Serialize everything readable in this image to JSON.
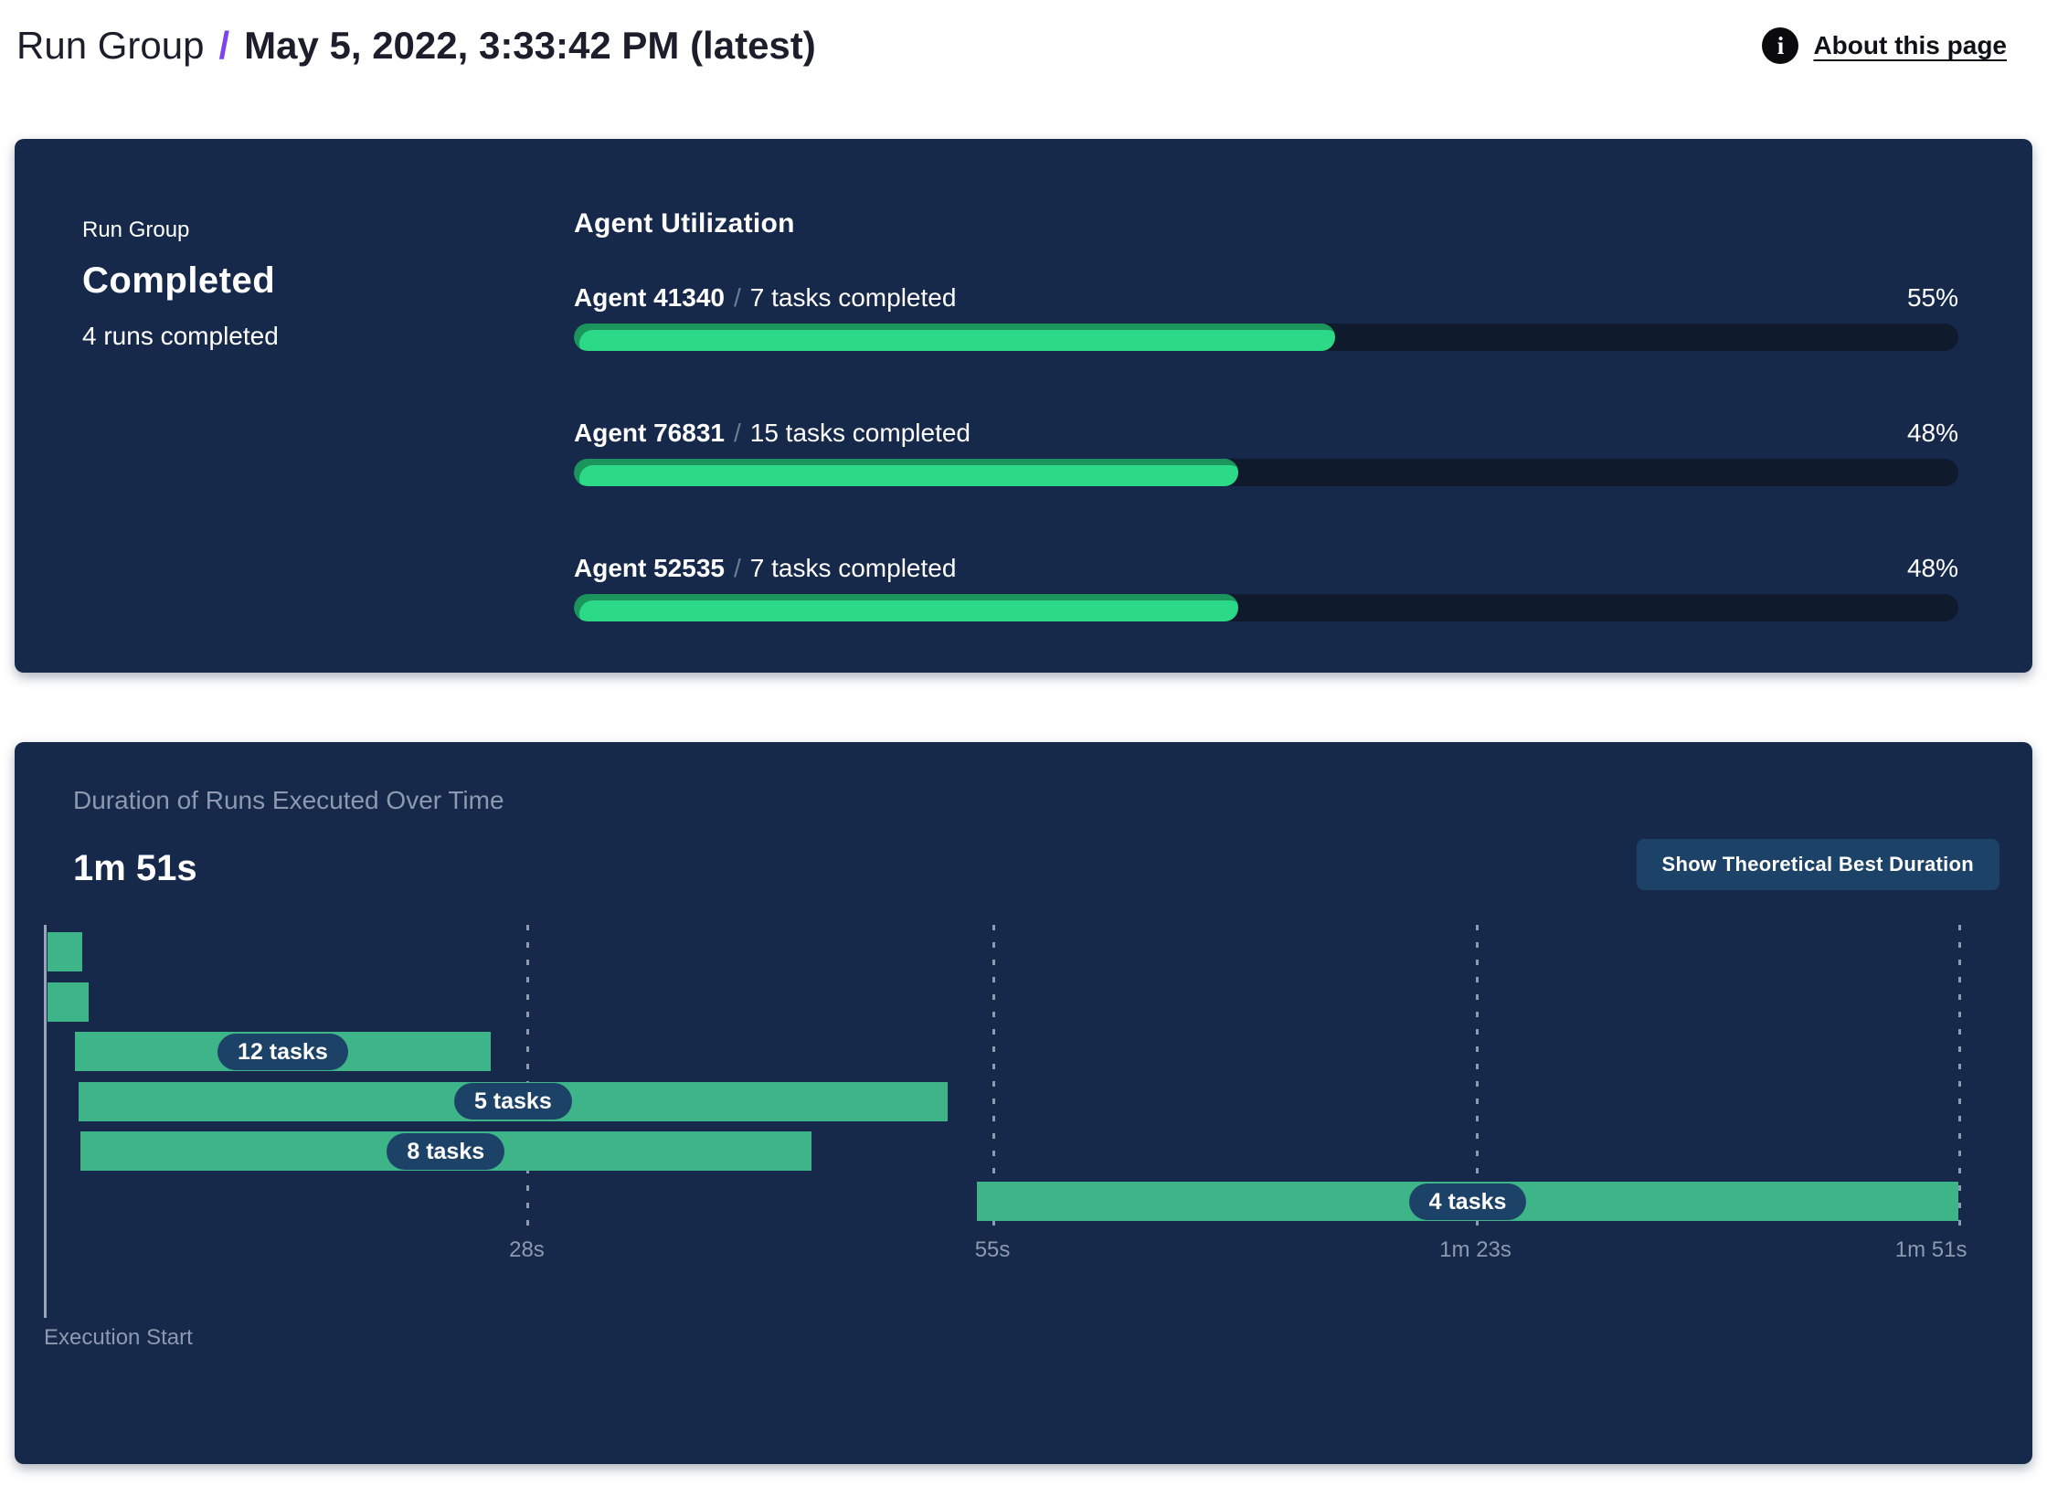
{
  "header": {
    "breadcrumb": "Run Group",
    "separator": "/",
    "current": "May 5, 2022, 3:33:42 PM (latest)",
    "about_link": "About this page",
    "info_icon_glyph": "i"
  },
  "colors": {
    "accent_purple": "#7a45f0",
    "panel_background": "#16294b",
    "progress_fill_green": "#2bd987",
    "progress_track": "#0f1a2d",
    "gantt_bar_green": "#3eb489",
    "pill_and_button_navy": "#1d4267",
    "muted_text": "#8d99ae"
  },
  "summary": {
    "label": "Run Group",
    "status": "Completed",
    "runs_completed": "4 runs completed",
    "section_title": "Agent Utilization",
    "agents": [
      {
        "name": "Agent 41340",
        "separator": "/",
        "tasks": "7 tasks completed",
        "utilization_pct": 55,
        "pct_label": "55%"
      },
      {
        "name": "Agent 76831",
        "separator": "/",
        "tasks": "15 tasks completed",
        "utilization_pct": 48,
        "pct_label": "48%"
      },
      {
        "name": "Agent 52535",
        "separator": "/",
        "tasks": "7 tasks completed",
        "utilization_pct": 48,
        "pct_label": "48%"
      }
    ]
  },
  "duration": {
    "title": "Duration of Runs Executed Over Time",
    "total": "1m 51s",
    "button_label": "Show Theoretical Best Duration",
    "axis_label": "Execution Start"
  },
  "chart_data": {
    "type": "bar",
    "subtype": "horizontal-gantt-timeline",
    "title": "Duration of Runs Executed Over Time",
    "total_duration_label": "1m 51s",
    "x_unit": "seconds",
    "x_range": [
      0,
      111
    ],
    "x_axis_label": "Execution Start",
    "grid": "dashed-vertical",
    "x_ticks": [
      {
        "value": 28,
        "label": "28s"
      },
      {
        "value": 55,
        "label": "55s"
      },
      {
        "value": 83,
        "label": "1m 23s"
      },
      {
        "value": 111,
        "label": "1m 51s"
      }
    ],
    "bars": [
      {
        "start": 0.2,
        "end": 2.2,
        "label": null
      },
      {
        "start": 0.2,
        "end": 2.6,
        "label": null
      },
      {
        "start": 1.8,
        "end": 25.9,
        "label": "12 tasks"
      },
      {
        "start": 2.0,
        "end": 52.4,
        "label": "5 tasks"
      },
      {
        "start": 2.1,
        "end": 44.5,
        "label": "8 tasks"
      },
      {
        "start": 54.1,
        "end": 111,
        "label": "4 tasks"
      }
    ]
  }
}
